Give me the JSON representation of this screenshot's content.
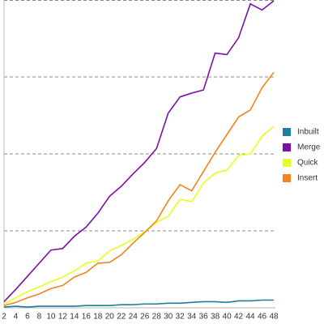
{
  "chart_data": {
    "type": "line",
    "x": [
      2,
      4,
      6,
      8,
      10,
      12,
      14,
      16,
      18,
      20,
      22,
      24,
      26,
      28,
      30,
      32,
      34,
      36,
      38,
      40,
      42,
      44,
      46,
      48
    ],
    "xticks": [
      2,
      4,
      6,
      8,
      10,
      12,
      14,
      16,
      18,
      20,
      22,
      24,
      26,
      28,
      30,
      32,
      34,
      36,
      38,
      40,
      42,
      44,
      46,
      48
    ],
    "xlim": [
      2,
      48
    ],
    "ylim": [
      0,
      4
    ],
    "yticks": [
      1,
      2,
      3,
      4
    ],
    "grid": true,
    "legend": "right",
    "series": [
      {
        "name": "Inbuilt",
        "color": "#1b7fa0",
        "values": [
          0.01,
          0.02,
          0.01,
          0.02,
          0.02,
          0.02,
          0.02,
          0.03,
          0.03,
          0.03,
          0.04,
          0.04,
          0.05,
          0.05,
          0.06,
          0.06,
          0.07,
          0.08,
          0.08,
          0.07,
          0.09,
          0.09,
          0.1,
          0.1
        ]
      },
      {
        "name": "Merge",
        "color": "#7c10a8",
        "values": [
          0.08,
          0.24,
          0.41,
          0.58,
          0.75,
          0.77,
          0.93,
          1.05,
          1.23,
          1.45,
          1.58,
          1.74,
          1.89,
          2.07,
          2.53,
          2.74,
          2.79,
          2.83,
          3.31,
          3.29,
          3.51,
          3.95,
          3.87,
          3.99
        ]
      },
      {
        "name": "Quick",
        "color": "#e6ff1c",
        "values": [
          0.05,
          0.13,
          0.21,
          0.27,
          0.34,
          0.4,
          0.48,
          0.58,
          0.61,
          0.74,
          0.81,
          0.89,
          0.99,
          1.11,
          1.19,
          1.41,
          1.38,
          1.62,
          1.75,
          1.79,
          1.98,
          2.0,
          2.23,
          2.36
        ]
      },
      {
        "name": "Insert",
        "color": "#f5821f",
        "values": [
          0.03,
          0.07,
          0.13,
          0.18,
          0.25,
          0.29,
          0.4,
          0.46,
          0.58,
          0.59,
          0.69,
          0.84,
          0.98,
          1.13,
          1.39,
          1.6,
          1.52,
          1.77,
          2.02,
          2.25,
          2.48,
          2.57,
          2.86,
          3.06
        ]
      }
    ]
  }
}
